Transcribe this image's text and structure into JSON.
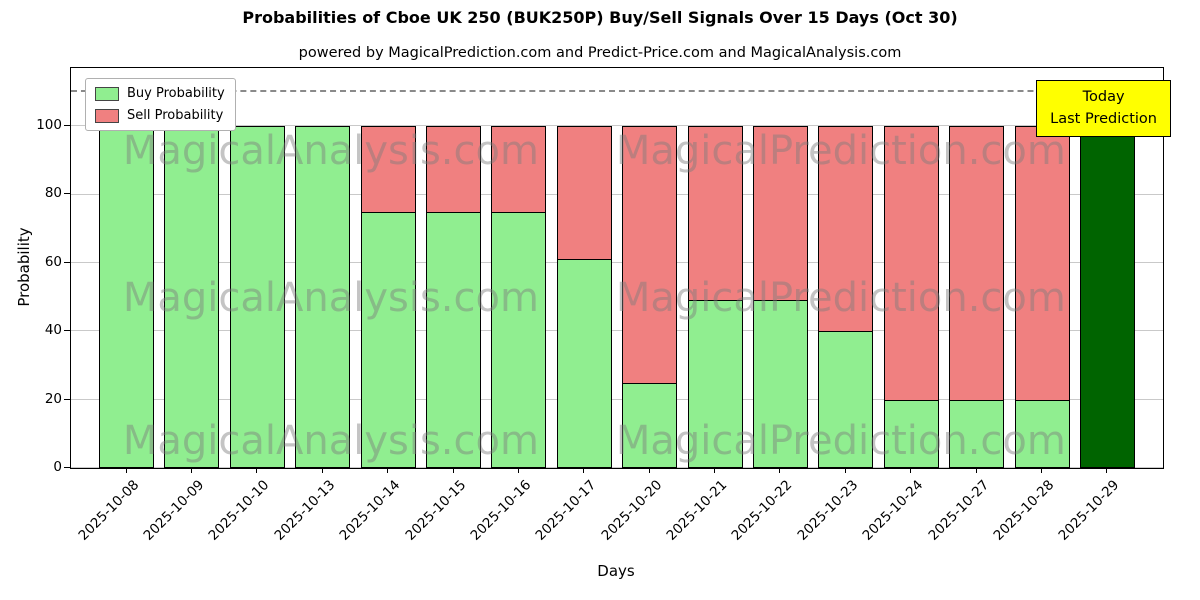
{
  "chart_data": {
    "type": "bar",
    "stacked": true,
    "title": "Probabilities of Cboe UK 250 (BUK250P) Buy/Sell Signals Over 15 Days (Oct 30)",
    "subtitle": "powered by MagicalPrediction.com and Predict-Price.com and MagicalAnalysis.com",
    "xlabel": "Days",
    "ylabel": "Probability",
    "categories": [
      "2025-10-08",
      "2025-10-09",
      "2025-10-10",
      "2025-10-13",
      "2025-10-14",
      "2025-10-15",
      "2025-10-16",
      "2025-10-17",
      "2025-10-20",
      "2025-10-21",
      "2025-10-22",
      "2025-10-23",
      "2025-10-24",
      "2025-10-27",
      "2025-10-28",
      "2025-10-29"
    ],
    "series": [
      {
        "name": "Buy Probability",
        "color": "#90EE90",
        "values": [
          100,
          100,
          100,
          100,
          75,
          75,
          75,
          61,
          25,
          49,
          49,
          40,
          20,
          20,
          20,
          100
        ]
      },
      {
        "name": "Sell Probability",
        "color": "#F08080",
        "values": [
          0,
          0,
          0,
          0,
          25,
          25,
          25,
          39,
          75,
          51,
          51,
          60,
          80,
          80,
          80,
          0
        ]
      }
    ],
    "today_index": 15,
    "today_color": "#006400",
    "bar_edge_color": "#000000",
    "yticks": [
      0,
      20,
      40,
      60,
      80,
      100
    ],
    "ylim": [
      0,
      117
    ],
    "dashed_line_y": 110,
    "grid": true,
    "legend_position": "top-left",
    "annotation": {
      "line1": "Today",
      "line2": "Last Prediction",
      "bg": "#FFFF00"
    },
    "watermarks": {
      "left": "MagicalAnalysis.com",
      "right": "MagicalPrediction.com"
    }
  }
}
